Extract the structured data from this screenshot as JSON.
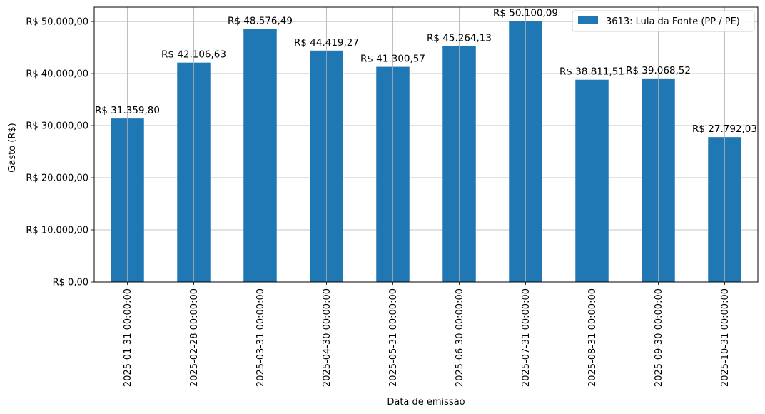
{
  "chart_data": {
    "type": "bar",
    "title": "",
    "xlabel": "Data de emissão",
    "ylabel": "Gasto (R$)",
    "categories": [
      "2025-01-31 00:00:00",
      "2025-02-28 00:00:00",
      "2025-03-31 00:00:00",
      "2025-04-30 00:00:00",
      "2025-05-31 00:00:00",
      "2025-06-30 00:00:00",
      "2025-07-31 00:00:00",
      "2025-08-31 00:00:00",
      "2025-09-30 00:00:00",
      "2025-10-31 00:00:00"
    ],
    "series": [
      {
        "name": "3613: Lula da Fonte (PP / PE)",
        "color": "#1f77b4",
        "values": [
          31359.8,
          42106.63,
          48576.49,
          44419.27,
          41300.57,
          45264.13,
          50100.09,
          38811.51,
          39068.52,
          27792.03
        ],
        "value_labels": [
          "R$ 31.359,80",
          "R$ 42.106,63",
          "R$ 48.576,49",
          "R$ 44.419,27",
          "R$ 41.300,57",
          "R$ 45.264,13",
          "R$ 50.100,09",
          "R$ 38.811,51",
          "R$ 39.068,52",
          "R$ 27.792,03"
        ]
      }
    ],
    "ylim": [
      0,
      52750
    ],
    "yticks": [
      0,
      10000,
      20000,
      30000,
      40000,
      50000
    ],
    "ytick_labels": [
      "R$ 0,00",
      "R$ 10.000,00",
      "R$ 20.000,00",
      "R$ 30.000,00",
      "R$ 40.000,00",
      "R$ 50.000,00"
    ],
    "grid": true,
    "legend_position": "top-right"
  }
}
